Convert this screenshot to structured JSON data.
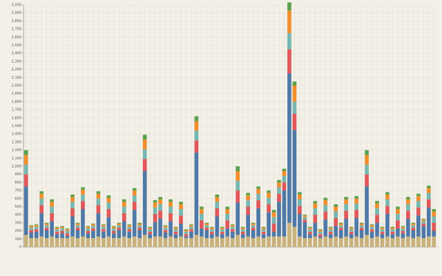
{
  "chart_data": {
    "type": "stacked_bar",
    "ylim": [
      0,
      3000
    ],
    "yticks": [
      0,
      100,
      200,
      300,
      400,
      500,
      600,
      700,
      800,
      900,
      {
        "value": 1000,
        "label": "1,000"
      },
      {
        "value": 1100,
        "label": "1,100"
      },
      {
        "value": 1200,
        "label": "1,200"
      },
      {
        "value": 1300,
        "label": "1,300"
      },
      {
        "value": 1400,
        "label": "1,400"
      },
      {
        "value": 1500,
        "label": "1,500"
      },
      {
        "value": 1600,
        "label": "1,600"
      },
      {
        "value": 1700,
        "label": "1,700"
      },
      {
        "value": 1800,
        "label": "1,800"
      },
      {
        "value": 1900,
        "label": "1,900"
      },
      {
        "value": 2000,
        "label": "2,000"
      },
      {
        "value": 2100,
        "label": "2,100"
      },
      {
        "value": 2200,
        "label": "2,200"
      },
      {
        "value": 2300,
        "label": "2,300"
      },
      {
        "value": 2400,
        "label": "2,400"
      },
      {
        "value": 2500,
        "label": "2,500"
      },
      {
        "value": 2600,
        "label": "2,600"
      },
      {
        "value": 2700,
        "label": "2,700"
      },
      {
        "value": 2800,
        "label": "2,800"
      },
      {
        "value": 2900,
        "label": "2,900"
      },
      {
        "value": 3000,
        "label": "3,000"
      }
    ],
    "grid": true,
    "series": [
      {
        "color": "#c8b27c",
        "values": [
          150,
          110,
          110,
          130,
          110,
          130,
          110,
          110,
          110,
          130,
          110,
          130,
          110,
          110,
          130,
          110,
          130,
          110,
          110,
          130,
          110,
          130,
          110,
          150,
          110,
          130,
          130,
          110,
          130,
          110,
          130,
          110,
          110,
          150,
          130,
          110,
          110,
          130,
          110,
          130,
          110,
          150,
          110,
          130,
          110,
          130,
          110,
          130,
          130,
          130,
          130,
          300,
          250,
          130,
          110,
          110,
          130,
          110,
          130,
          110,
          130,
          110,
          130,
          110,
          130,
          110,
          150,
          110,
          130,
          110,
          130,
          110,
          130,
          110,
          130,
          110,
          130,
          110,
          130,
          130
        ]
      },
      {
        "color": "#4e79a7",
        "values": [
          600,
          70,
          80,
          290,
          100,
          190,
          50,
          60,
          30,
          250,
          100,
          340,
          60,
          90,
          290,
          80,
          240,
          60,
          100,
          190,
          80,
          330,
          100,
          790,
          50,
          180,
          220,
          70,
          190,
          50,
          160,
          20,
          80,
          1020,
          100,
          100,
          50,
          250,
          50,
          100,
          80,
          400,
          50,
          270,
          100,
          350,
          50,
          300,
          60,
          430,
          570,
          1850,
          1200,
          280,
          200,
          50,
          170,
          20,
          210,
          50,
          130,
          100,
          220,
          50,
          230,
          100,
          600,
          80,
          170,
          50,
          280,
          50,
          100,
          60,
          220,
          100,
          260,
          150,
          360,
          70
        ]
      },
      {
        "color": "#e15759",
        "values": [
          150,
          30,
          30,
          100,
          30,
          100,
          30,
          30,
          30,
          100,
          30,
          100,
          30,
          30,
          100,
          30,
          100,
          30,
          30,
          100,
          30,
          100,
          30,
          150,
          30,
          100,
          100,
          30,
          100,
          30,
          100,
          30,
          30,
          150,
          100,
          30,
          30,
          100,
          30,
          100,
          30,
          150,
          30,
          100,
          30,
          100,
          30,
          100,
          100,
          100,
          100,
          300,
          200,
          100,
          30,
          30,
          100,
          30,
          100,
          30,
          100,
          30,
          100,
          30,
          100,
          30,
          150,
          30,
          100,
          30,
          100,
          30,
          100,
          30,
          100,
          30,
          100,
          30,
          100,
          100
        ]
      },
      {
        "color": "#76b7b2",
        "values": [
          120,
          30,
          30,
          80,
          30,
          80,
          30,
          30,
          30,
          80,
          30,
          80,
          30,
          30,
          80,
          30,
          80,
          30,
          30,
          80,
          30,
          80,
          30,
          120,
          30,
          80,
          80,
          30,
          80,
          30,
          80,
          30,
          30,
          120,
          80,
          30,
          30,
          80,
          30,
          80,
          30,
          120,
          30,
          80,
          30,
          80,
          30,
          80,
          80,
          80,
          80,
          200,
          150,
          80,
          30,
          30,
          80,
          30,
          80,
          30,
          80,
          30,
          80,
          30,
          80,
          30,
          120,
          30,
          80,
          30,
          80,
          30,
          80,
          30,
          80,
          30,
          80,
          30,
          80,
          80
        ]
      },
      {
        "color": "#f28e2b",
        "values": [
          120,
          20,
          20,
          60,
          20,
          60,
          20,
          20,
          20,
          60,
          20,
          60,
          20,
          20,
          60,
          20,
          60,
          20,
          20,
          60,
          20,
          60,
          20,
          120,
          20,
          60,
          60,
          20,
          60,
          20,
          60,
          20,
          20,
          120,
          60,
          20,
          20,
          60,
          20,
          60,
          20,
          120,
          20,
          60,
          20,
          60,
          20,
          60,
          60,
          60,
          60,
          280,
          200,
          60,
          20,
          20,
          60,
          20,
          60,
          20,
          60,
          20,
          60,
          20,
          60,
          20,
          120,
          20,
          60,
          20,
          60,
          20,
          60,
          20,
          60,
          20,
          60,
          20,
          60,
          60
        ]
      },
      {
        "color": "#59a14f",
        "values": [
          60,
          10,
          10,
          30,
          10,
          30,
          10,
          10,
          10,
          30,
          10,
          30,
          10,
          10,
          30,
          10,
          30,
          10,
          10,
          30,
          10,
          30,
          10,
          60,
          10,
          30,
          30,
          10,
          30,
          10,
          30,
          10,
          10,
          60,
          30,
          10,
          10,
          30,
          10,
          30,
          10,
          60,
          10,
          30,
          10,
          30,
          10,
          30,
          30,
          30,
          30,
          100,
          50,
          30,
          10,
          10,
          30,
          10,
          30,
          10,
          30,
          10,
          30,
          10,
          30,
          10,
          60,
          10,
          30,
          10,
          30,
          10,
          30,
          10,
          30,
          10,
          30,
          10,
          30,
          30
        ]
      }
    ]
  }
}
